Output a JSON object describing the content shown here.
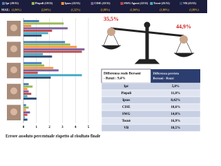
{
  "chart_data": {
    "type": "bar",
    "orientation": "horizontal",
    "categories": [
      null,
      null,
      null,
      null,
      null
    ],
    "series": [
      {
        "name": "Ipr (19/11)",
        "color": "#4a7ebb",
        "mae": "(1,84%)",
        "values": [
          1.2,
          3.2,
          1.4,
          0.4,
          0.2
        ]
      },
      {
        "name": "Piepoli (19/11)",
        "color": "#98b954",
        "mae": "(2,04%)",
        "values": [
          3.1,
          3.6,
          1.6,
          0.7,
          0.4
        ]
      },
      {
        "name": "Ipsos (22/11)",
        "color": "#f79646",
        "mae": "(1,32%)",
        "values": [
          0.6,
          4.1,
          2.3,
          0.3,
          0.2
        ]
      },
      {
        "name": "CISE (22/11)",
        "color": "#7d60a0",
        "mae": "(1,88%)",
        "values": [
          3.4,
          4.7,
          2.7,
          0.4,
          0.5
        ]
      },
      {
        "name": "SWG Agorà (22/11)",
        "color": "#be4b48",
        "mae": "(1,84%)",
        "values": [
          2.2,
          4.5,
          1.1,
          0.6,
          0.3
        ]
      },
      {
        "name": "Tecnè (25/11)",
        "color": "#46aac5",
        "mae": "(1,80%)",
        "values": [
          1.9,
          1.5,
          4.5,
          0.3,
          0.1
        ]
      },
      {
        "name": "VB (25/11)",
        "color": "#2c4d75",
        "mae": "(1,88%)",
        "values": [
          1.4,
          2.2,
          2.1,
          1.0,
          0.3
        ]
      }
    ],
    "mae_title": "MAE:",
    "xlim": [
      0,
      5
    ],
    "xticks": [
      0,
      1,
      2,
      3,
      4,
      5
    ],
    "grid": true,
    "x_label": "Errore assoluto percentuale rispetto al risultato finale"
  },
  "scale": {
    "left": "35,5%",
    "right": "44,9%"
  },
  "table": {
    "header": [
      "Differenza reale Bersani - Renzi : 9,4%",
      "Differenza prevista Bersani - Renzi"
    ],
    "rows": [
      [
        "Ipr",
        "5,0%"
      ],
      [
        "Piepoli",
        "11,0%"
      ],
      [
        "Ipsos",
        "8,42%"
      ],
      [
        "CISE",
        "10,6%"
      ],
      [
        "SWG",
        "14,0%"
      ],
      [
        "Tecnè",
        "16,9%"
      ],
      [
        "VB",
        "10,5%"
      ]
    ]
  }
}
